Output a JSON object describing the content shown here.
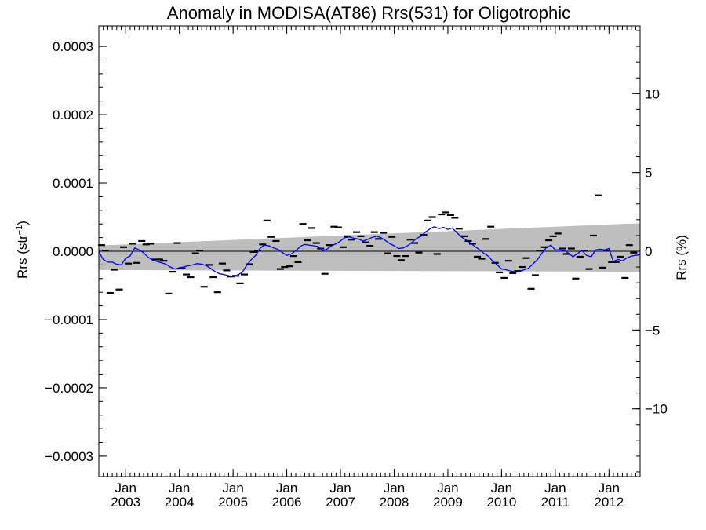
{
  "chart_data": {
    "type": "scatter",
    "title": "Anomaly in MODISA(AT86) Rrs(531) for Oligotrophic",
    "ylabel_left_main": "Rrs (str",
    "ylabel_left_sup": "−1",
    "ylabel_left_close": ")",
    "ylabel_right": "Rrs (%)",
    "xlim": [
      2002.5,
      2012.58
    ],
    "ylim": [
      -0.00033,
      0.00033
    ],
    "ylim_right": [
      -14.3,
      14.3
    ],
    "y_ticks": [
      {
        "value": 0.0003,
        "label": "0.0003"
      },
      {
        "value": 0.0002,
        "label": "0.0002"
      },
      {
        "value": 0.0001,
        "label": "0.0001"
      },
      {
        "value": 0.0,
        "label": "0.0000"
      },
      {
        "value": -0.0001,
        "label": "−0.0001"
      },
      {
        "value": -0.0002,
        "label": "−0.0002"
      },
      {
        "value": -0.0003,
        "label": "−0.0003"
      }
    ],
    "y_right_ticks": [
      {
        "value": 10,
        "label": "10"
      },
      {
        "value": 5,
        "label": "5"
      },
      {
        "value": 0,
        "label": "0"
      },
      {
        "value": -5,
        "label": "−5"
      },
      {
        "value": -10,
        "label": "−10"
      }
    ],
    "x_ticks": [
      {
        "value": 2003.0,
        "month": "Jan",
        "year": "2003"
      },
      {
        "value": 2004.0,
        "month": "Jan",
        "year": "2004"
      },
      {
        "value": 2005.0,
        "month": "Jan",
        "year": "2005"
      },
      {
        "value": 2006.0,
        "month": "Jan",
        "year": "2006"
      },
      {
        "value": 2007.0,
        "month": "Jan",
        "year": "2007"
      },
      {
        "value": 2008.0,
        "month": "Jan",
        "year": "2008"
      },
      {
        "value": 2009.0,
        "month": "Jan",
        "year": "2009"
      },
      {
        "value": 2010.0,
        "month": "Jan",
        "year": "2010"
      },
      {
        "value": 2011.0,
        "month": "Jan",
        "year": "2011"
      },
      {
        "value": 2012.0,
        "month": "Jan",
        "year": "2012"
      }
    ],
    "band": {
      "color": "#bebebe",
      "upper": [
        [
          2002.5,
          8.5e-06
        ],
        [
          2012.58,
          4.1e-05
        ]
      ],
      "lower": [
        [
          2002.5,
          -2.75e-05
        ],
        [
          2012.58,
          -3e-05
        ]
      ]
    },
    "zero_line": 0,
    "points": [
      [
        2002.55,
        9e-06
      ],
      [
        2002.62,
        1e-06
      ],
      [
        2002.71,
        -6.1e-05
      ],
      [
        2002.79,
        -2.7e-05
      ],
      [
        2002.88,
        -5.6e-05
      ],
      [
        2002.96,
        6e-06
      ],
      [
        2003.05,
        -1.8e-05
      ],
      [
        2003.13,
        1.1e-05
      ],
      [
        2003.21,
        -1.7e-05
      ],
      [
        2003.3,
        1.5e-05
      ],
      [
        2003.38,
        1e-05
      ],
      [
        2003.46,
        1.1e-05
      ],
      [
        2003.55,
        -1.2e-05
      ],
      [
        2003.63,
        -1.2e-05
      ],
      [
        2003.71,
        -1.4e-05
      ],
      [
        2003.8,
        -6.2e-05
      ],
      [
        2003.88,
        -3e-05
      ],
      [
        2003.96,
        1.2e-05
      ],
      [
        2004.05,
        -2.5e-05
      ],
      [
        2004.13,
        -3.4e-05
      ],
      [
        2004.21,
        -3.8e-05
      ],
      [
        2004.3,
        -3e-06
      ],
      [
        2004.38,
        1e-06
      ],
      [
        2004.46,
        -5.2e-05
      ],
      [
        2004.55,
        -2e-05
      ],
      [
        2004.63,
        -3.8e-05
      ],
      [
        2004.71,
        -6e-05
      ],
      [
        2004.8,
        -1.8e-05
      ],
      [
        2004.88,
        -2.8e-05
      ],
      [
        2004.96,
        -3.7e-05
      ],
      [
        2005.05,
        -3.6e-05
      ],
      [
        2005.13,
        -4.7e-05
      ],
      [
        2005.21,
        -3.4e-05
      ],
      [
        2005.3,
        -1.9e-05
      ],
      [
        2005.38,
        -1e-06
      ],
      [
        2005.46,
        1e-06
      ],
      [
        2005.55,
        1e-05
      ],
      [
        2005.63,
        4.5e-05
      ],
      [
        2005.71,
        2.1e-05
      ],
      [
        2005.8,
        1.5e-05
      ],
      [
        2005.88,
        -2.6e-05
      ],
      [
        2005.96,
        -2.3e-05
      ],
      [
        2006.05,
        -2.2e-05
      ],
      [
        2006.13,
        -7e-06
      ],
      [
        2006.21,
        -1.6e-05
      ],
      [
        2006.3,
        4e-05
      ],
      [
        2006.38,
        1.6e-05
      ],
      [
        2006.46,
        3.4e-05
      ],
      [
        2006.55,
        1.2e-05
      ],
      [
        2006.63,
        4e-06
      ],
      [
        2006.71,
        -3.3e-05
      ],
      [
        2006.8,
        9e-06
      ],
      [
        2006.88,
        3.6e-05
      ],
      [
        2006.96,
        3.5e-05
      ],
      [
        2007.05,
        6e-06
      ],
      [
        2007.13,
        2.2e-05
      ],
      [
        2007.21,
        1.7e-05
      ],
      [
        2007.3,
        2.8e-05
      ],
      [
        2007.38,
        2.2e-05
      ],
      [
        2007.46,
        1.3e-05
      ],
      [
        2007.55,
        8e-06
      ],
      [
        2007.63,
        2.8e-05
      ],
      [
        2007.71,
        1.8e-05
      ],
      [
        2007.8,
        2.7e-05
      ],
      [
        2007.88,
        -3e-06
      ],
      [
        2007.96,
        2.1e-05
      ],
      [
        2008.05,
        -7e-06
      ],
      [
        2008.13,
        -1.3e-05
      ],
      [
        2008.21,
        -7e-06
      ],
      [
        2008.3,
        1.7e-05
      ],
      [
        2008.38,
        1.2e-05
      ],
      [
        2008.46,
        -2e-06
      ],
      [
        2008.55,
        2.4e-05
      ],
      [
        2008.63,
        4.5e-05
      ],
      [
        2008.71,
        5e-05
      ],
      [
        2008.8,
        -4e-06
      ],
      [
        2008.88,
        5.4e-05
      ],
      [
        2008.96,
        5.7e-05
      ],
      [
        2009.05,
        5.3e-05
      ],
      [
        2009.13,
        4.9e-05
      ],
      [
        2009.21,
        3.3e-05
      ],
      [
        2009.3,
        2.2e-05
      ],
      [
        2009.38,
        1.5e-05
      ],
      [
        2009.46,
        1.1e-05
      ],
      [
        2009.55,
        -8e-06
      ],
      [
        2009.63,
        -1.1e-05
      ],
      [
        2009.71,
        1.8e-05
      ],
      [
        2009.8,
        3.6e-05
      ],
      [
        2009.88,
        -1.7e-05
      ],
      [
        2009.96,
        -3.1e-05
      ],
      [
        2010.05,
        -3.9e-05
      ],
      [
        2010.13,
        -1.4e-05
      ],
      [
        2010.21,
        -3.2e-05
      ],
      [
        2010.3,
        -2.9e-05
      ],
      [
        2010.38,
        -2.3e-05
      ],
      [
        2010.46,
        -1e-05
      ],
      [
        2010.55,
        -5.5e-05
      ],
      [
        2010.63,
        -3.5e-05
      ],
      [
        2010.71,
        1e-06
      ],
      [
        2010.8,
        6e-06
      ],
      [
        2010.88,
        1.6e-05
      ],
      [
        2010.96,
        2.2e-05
      ],
      [
        2011.05,
        2.6e-05
      ],
      [
        2011.13,
        4e-06
      ],
      [
        2011.21,
        -4e-06
      ],
      [
        2011.3,
        4e-06
      ],
      [
        2011.38,
        -4e-05
      ],
      [
        2011.46,
        -8e-06
      ],
      [
        2011.55,
        1e-06
      ],
      [
        2011.63,
        -2.6e-05
      ],
      [
        2011.71,
        2.3e-05
      ],
      [
        2011.8,
        8.2e-05
      ],
      [
        2011.88,
        -2.4e-05
      ],
      [
        2011.96,
        1e-06
      ],
      [
        2012.05,
        -1.6e-05
      ],
      [
        2012.13,
        -1.6e-05
      ],
      [
        2012.21,
        -8e-06
      ],
      [
        2012.3,
        -3.9e-05
      ],
      [
        2012.38,
        9e-06
      ],
      [
        2012.46,
        -2e-06
      ]
    ],
    "smooth_color": "#0000ff",
    "smooth": [
      [
        2002.5,
        -5e-07
      ],
      [
        2002.58,
        -1.2e-05
      ],
      [
        2002.67,
        -1.6e-05
      ],
      [
        2002.75,
        -1.6e-05
      ],
      [
        2002.83,
        -1.9e-05
      ],
      [
        2002.92,
        -2e-05
      ],
      [
        2003.0,
        -1e-05
      ],
      [
        2003.08,
        -7e-06
      ],
      [
        2003.17,
        5e-06
      ],
      [
        2003.25,
        2e-06
      ],
      [
        2003.33,
        -2e-06
      ],
      [
        2003.42,
        -9e-06
      ],
      [
        2003.5,
        -1.3e-05
      ],
      [
        2003.58,
        -1.5e-05
      ],
      [
        2003.67,
        -1.7e-05
      ],
      [
        2003.75,
        -1.9e-05
      ],
      [
        2003.83,
        -2.3e-05
      ],
      [
        2003.92,
        -2.6e-05
      ],
      [
        2004.0,
        -2.4e-05
      ],
      [
        2004.08,
        -2.3e-05
      ],
      [
        2004.17,
        -2.1e-05
      ],
      [
        2004.25,
        -2e-05
      ],
      [
        2004.33,
        -1.8e-05
      ],
      [
        2004.42,
        -1.9e-05
      ],
      [
        2004.5,
        -2.1e-05
      ],
      [
        2004.58,
        -2.5e-05
      ],
      [
        2004.67,
        -3e-05
      ],
      [
        2004.75,
        -3.3e-05
      ],
      [
        2004.83,
        -3.4e-05
      ],
      [
        2004.92,
        -3.6e-05
      ],
      [
        2005.0,
        -3.7e-05
      ],
      [
        2005.08,
        -3.5e-05
      ],
      [
        2005.17,
        -3.1e-05
      ],
      [
        2005.25,
        -2.1e-05
      ],
      [
        2005.33,
        -1.3e-05
      ],
      [
        2005.42,
        -6e-06
      ],
      [
        2005.5,
        4e-06
      ],
      [
        2005.58,
        9e-06
      ],
      [
        2005.67,
        8e-06
      ],
      [
        2005.75,
        5e-06
      ],
      [
        2005.83,
        3e-06
      ],
      [
        2005.92,
        -2e-06
      ],
      [
        2006.0,
        -6e-06
      ],
      [
        2006.08,
        -4e-06
      ],
      [
        2006.17,
        1e-06
      ],
      [
        2006.25,
        7e-06
      ],
      [
        2006.33,
        1e-05
      ],
      [
        2006.42,
        9e-06
      ],
      [
        2006.5,
        8e-06
      ],
      [
        2006.58,
        7e-06
      ],
      [
        2006.67,
        1e-06
      ],
      [
        2006.75,
        3e-06
      ],
      [
        2006.83,
        8e-06
      ],
      [
        2006.92,
        1.1e-05
      ],
      [
        2007.0,
        1.5e-05
      ],
      [
        2007.08,
        2e-05
      ],
      [
        2007.17,
        2.1e-05
      ],
      [
        2007.25,
        1.9e-05
      ],
      [
        2007.33,
        1.8e-05
      ],
      [
        2007.42,
        1.5e-05
      ],
      [
        2007.5,
        1.7e-05
      ],
      [
        2007.58,
        2e-05
      ],
      [
        2007.67,
        2.2e-05
      ],
      [
        2007.75,
        2e-05
      ],
      [
        2007.83,
        1.6e-05
      ],
      [
        2007.92,
        1.1e-05
      ],
      [
        2008.0,
        8e-06
      ],
      [
        2008.08,
        4e-06
      ],
      [
        2008.17,
        5e-06
      ],
      [
        2008.25,
        8e-06
      ],
      [
        2008.33,
        1.3e-05
      ],
      [
        2008.42,
        1.9e-05
      ],
      [
        2008.5,
        2.2e-05
      ],
      [
        2008.58,
        2.8e-05
      ],
      [
        2008.67,
        3.3e-05
      ],
      [
        2008.75,
        3.6e-05
      ],
      [
        2008.83,
        3.3e-05
      ],
      [
        2008.92,
        3.5e-05
      ],
      [
        2009.0,
        3.2e-05
      ],
      [
        2009.08,
        3.4e-05
      ],
      [
        2009.17,
        2.7e-05
      ],
      [
        2009.25,
        2.1e-05
      ],
      [
        2009.33,
        1.7e-05
      ],
      [
        2009.42,
        1.2e-05
      ],
      [
        2009.5,
        7e-06
      ],
      [
        2009.58,
        3e-06
      ],
      [
        2009.67,
        -3e-06
      ],
      [
        2009.75,
        -7e-06
      ],
      [
        2009.83,
        -1.4e-05
      ],
      [
        2009.92,
        -2e-05
      ],
      [
        2010.0,
        -2.6e-05
      ],
      [
        2010.08,
        -2.7e-05
      ],
      [
        2010.17,
        -2.9e-05
      ],
      [
        2010.25,
        -3e-05
      ],
      [
        2010.33,
        -3e-05
      ],
      [
        2010.42,
        -2.7e-05
      ],
      [
        2010.5,
        -2.5e-05
      ],
      [
        2010.58,
        -1.9e-05
      ],
      [
        2010.67,
        -1.2e-05
      ],
      [
        2010.75,
        -3e-06
      ],
      [
        2010.83,
        5e-06
      ],
      [
        2010.92,
        9e-06
      ],
      [
        2011.0,
        2e-06
      ],
      [
        2011.08,
        2e-06
      ],
      [
        2011.17,
        1e-06
      ],
      [
        2011.25,
        -3e-06
      ],
      [
        2011.33,
        -8e-06
      ],
      [
        2011.42,
        -3e-06
      ],
      [
        2011.5,
        1e-06
      ],
      [
        2011.58,
        -6e-06
      ],
      [
        2011.67,
        -8e-06
      ],
      [
        2011.75,
        2e-06
      ],
      [
        2011.83,
        3e-06
      ],
      [
        2011.92,
        2e-06
      ],
      [
        2012.0,
        4e-06
      ],
      [
        2012.08,
        -1.5e-05
      ],
      [
        2012.17,
        -1.2e-05
      ],
      [
        2012.25,
        -1.4e-05
      ],
      [
        2012.33,
        -1e-05
      ],
      [
        2012.42,
        -7e-06
      ],
      [
        2012.5,
        -6e-06
      ],
      [
        2012.58,
        -5e-06
      ]
    ]
  }
}
